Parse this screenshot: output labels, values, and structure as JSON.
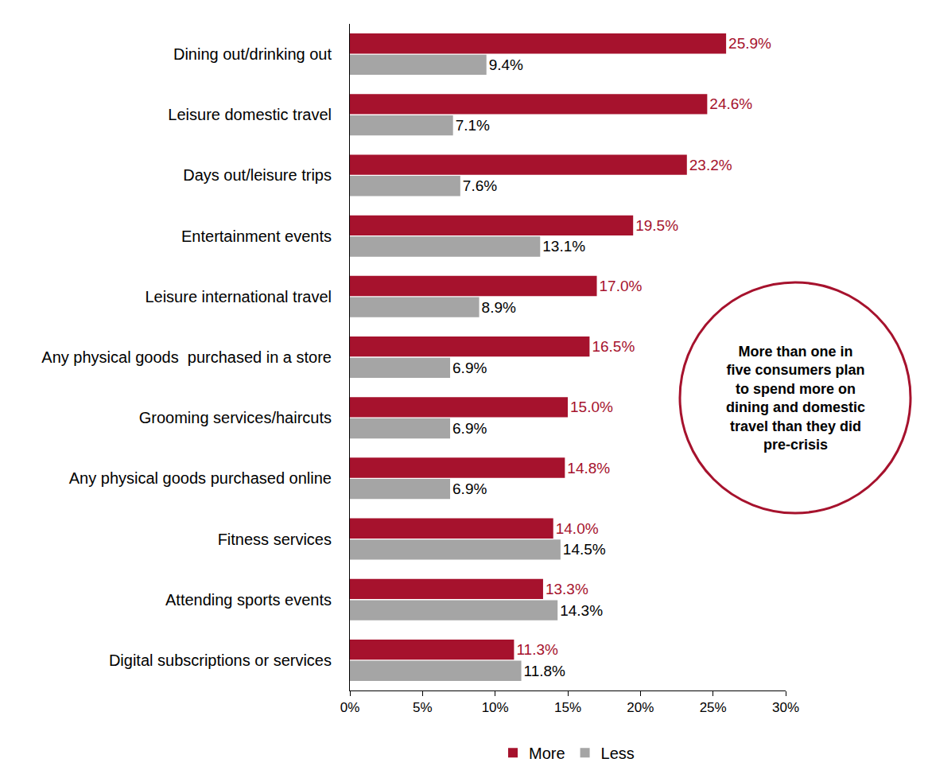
{
  "chart_data": {
    "type": "bar",
    "orientation": "horizontal",
    "categories": [
      "Dining out/drinking out",
      "Leisure domestic travel",
      "Days out/leisure trips",
      "Entertainment events",
      "Leisure international travel",
      "Any physical goods  purchased in a store",
      "Grooming services/haircuts",
      "Any physical goods purchased online",
      "Fitness services",
      "Attending sports events",
      "Digital subscriptions or services"
    ],
    "series": [
      {
        "name": "More",
        "color": "#A6122D",
        "values": [
          25.9,
          24.6,
          23.2,
          19.5,
          17.0,
          16.5,
          15.0,
          14.8,
          14.0,
          13.3,
          11.3
        ],
        "value_labels": [
          "25.9%",
          "24.6%",
          "23.2%",
          "19.5%",
          "17.0%",
          "16.5%",
          "15.0%",
          "14.8%",
          "14.0%",
          "13.3%",
          "11.3%"
        ]
      },
      {
        "name": "Less",
        "color": "#A5A5A5",
        "values": [
          9.4,
          7.1,
          7.6,
          13.1,
          8.9,
          6.9,
          6.9,
          6.9,
          14.5,
          14.3,
          11.8
        ],
        "value_labels": [
          "9.4%",
          "7.1%",
          "7.6%",
          "13.1%",
          "8.9%",
          "6.9%",
          "6.9%",
          "6.9%",
          "14.5%",
          "14.3%",
          "11.8%"
        ]
      }
    ],
    "xlim": [
      0,
      30
    ],
    "xticks": [
      {
        "value": 0,
        "label": "0%"
      },
      {
        "value": 5,
        "label": "5%"
      },
      {
        "value": 10,
        "label": "10%"
      },
      {
        "value": 15,
        "label": "15%"
      },
      {
        "value": 20,
        "label": "20%"
      },
      {
        "value": 25,
        "label": "25%"
      },
      {
        "value": 30,
        "label": "30%"
      }
    ],
    "grid": false,
    "legend": "bottom",
    "data_labels": true,
    "annotation": [
      "More than one in",
      "five consumers plan",
      "to spend more on",
      "dining and domestic",
      "travel than they did",
      "pre-crisis"
    ]
  }
}
